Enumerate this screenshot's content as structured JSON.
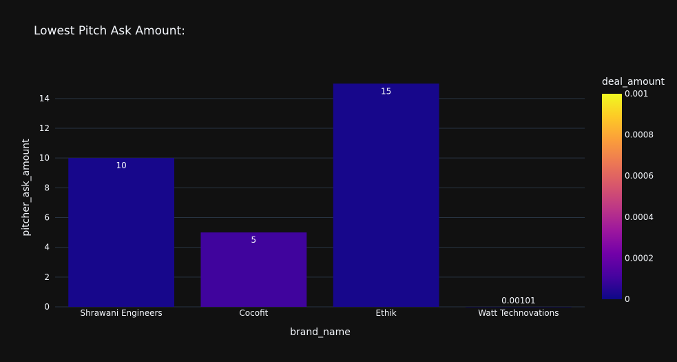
{
  "chart_data": {
    "type": "bar",
    "title": "Lowest Pitch Ask Amount:",
    "xlabel": "brand_name",
    "ylabel": "pitcher_ask_amount",
    "categories": [
      "Shrawani Engineers",
      "Cocofit",
      "Ethik",
      "Watt Technovations"
    ],
    "values": [
      10,
      5,
      15,
      0.00101
    ],
    "value_labels": [
      "10",
      "5",
      "15",
      "0.00101"
    ],
    "color_values": [
      2e-05,
      0.0001,
      2e-05,
      0.0
    ],
    "ylim": [
      0,
      15.8
    ],
    "yticks": [
      0,
      2,
      4,
      6,
      8,
      10,
      12,
      14
    ],
    "grid": true,
    "colorbar": {
      "title": "deal_amount",
      "range": [
        0,
        0.001
      ],
      "ticks": [
        "0",
        "0.0002",
        "0.0004",
        "0.0006",
        "0.0008",
        "0.001"
      ],
      "tick_values": [
        0,
        0.0002,
        0.0004,
        0.0006,
        0.0008,
        0.001
      ],
      "colors": [
        "#0d0887",
        "#46039f",
        "#7201a8",
        "#9c179e",
        "#bd3786",
        "#d8576b",
        "#ed7953",
        "#fb9f3a",
        "#fdca26",
        "#f0f921"
      ]
    },
    "background": "#111111",
    "grid_color": "#283442"
  }
}
